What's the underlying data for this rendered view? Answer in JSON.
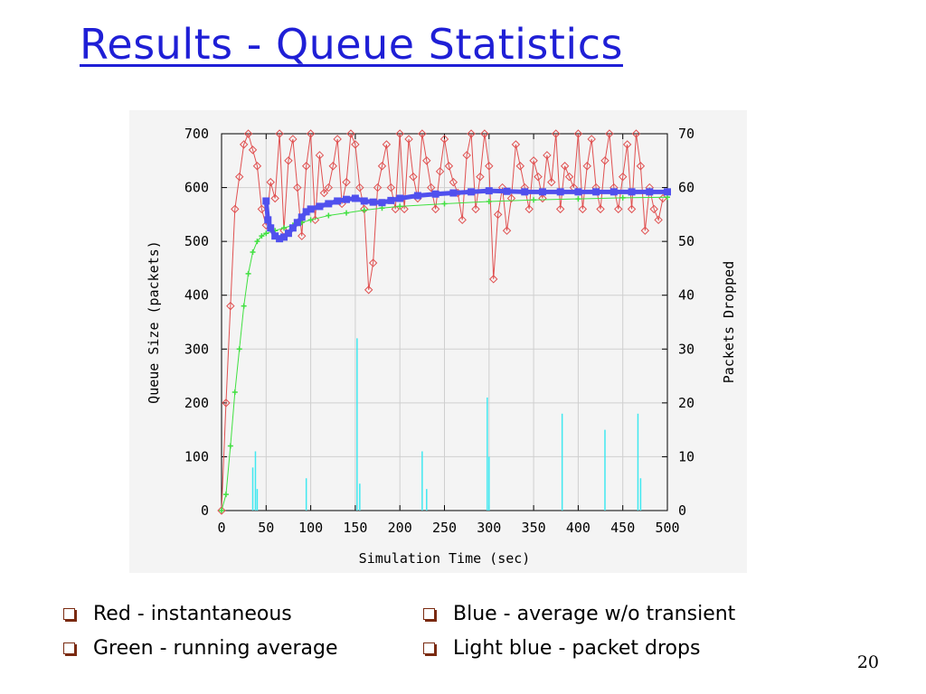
{
  "slide": {
    "title": "Results - Queue Statistics",
    "page_number": "20",
    "bullets_left": [
      "Red - instantaneous",
      "Green - running average"
    ],
    "bullets_right": [
      "Blue - average w/o transient",
      "Light blue - packet drops"
    ],
    "bullet_icon": "hollow-square-bullet-icon"
  },
  "chart_data": {
    "type": "line",
    "xlabel": "Simulation Time (sec)",
    "ylabel": "Queue Size (packets)",
    "y2label": "Packets Dropped",
    "xlim": [
      0,
      500
    ],
    "ylim": [
      0,
      700
    ],
    "y2lim": [
      0,
      70
    ],
    "xticks": [
      "0",
      "50",
      "100",
      "150",
      "200",
      "250",
      "300",
      "350",
      "400",
      "450",
      "500"
    ],
    "yticks": [
      "0",
      "100",
      "200",
      "300",
      "400",
      "500",
      "600",
      "700"
    ],
    "y2ticks": [
      "0",
      "10",
      "20",
      "30",
      "40",
      "50",
      "60",
      "70"
    ],
    "grid": true,
    "colors": {
      "instantaneous": "#e05050",
      "running_average": "#40e040",
      "average_no_transient": "#5050ee",
      "packet_drops": "#40e8f0"
    },
    "series": [
      {
        "key": "instantaneous",
        "axis": "left",
        "marker": "diamond",
        "x": [
          0,
          5,
          10,
          15,
          20,
          25,
          30,
          35,
          40,
          45,
          50,
          55,
          60,
          65,
          70,
          75,
          80,
          85,
          90,
          95,
          100,
          105,
          110,
          115,
          120,
          125,
          130,
          135,
          140,
          145,
          150,
          155,
          160,
          165,
          170,
          175,
          180,
          185,
          190,
          195,
          200,
          205,
          210,
          215,
          220,
          225,
          230,
          235,
          240,
          245,
          250,
          255,
          260,
          265,
          270,
          275,
          280,
          285,
          290,
          295,
          300,
          305,
          310,
          315,
          320,
          325,
          330,
          335,
          340,
          345,
          350,
          355,
          360,
          365,
          370,
          375,
          380,
          385,
          390,
          395,
          400,
          405,
          410,
          415,
          420,
          425,
          430,
          435,
          440,
          445,
          450,
          455,
          460,
          465,
          470,
          475,
          480,
          485,
          490,
          495
        ],
        "y": [
          0,
          200,
          380,
          560,
          620,
          680,
          700,
          670,
          640,
          560,
          530,
          610,
          580,
          700,
          520,
          650,
          690,
          600,
          510,
          640,
          700,
          540,
          660,
          590,
          600,
          640,
          690,
          570,
          610,
          700,
          680,
          600,
          560,
          410,
          460,
          600,
          640,
          680,
          600,
          560,
          700,
          560,
          690,
          620,
          580,
          700,
          650,
          600,
          560,
          630,
          690,
          640,
          610,
          590,
          540,
          660,
          700,
          560,
          620,
          700,
          640,
          430,
          550,
          600,
          520,
          580,
          680,
          640,
          600,
          560,
          650,
          620,
          580,
          660,
          610,
          700,
          560,
          640,
          620,
          600,
          700,
          560,
          640,
          690,
          600,
          560,
          650,
          700,
          600,
          560,
          620,
          680,
          560,
          700,
          640,
          520,
          600,
          560,
          540,
          580
        ]
      },
      {
        "key": "running_average",
        "axis": "left",
        "marker": "plus",
        "x": [
          0,
          5,
          10,
          15,
          20,
          25,
          30,
          35,
          40,
          45,
          50,
          60,
          70,
          80,
          90,
          100,
          120,
          140,
          160,
          180,
          200,
          250,
          300,
          350,
          400,
          450,
          500
        ],
        "y": [
          0,
          30,
          120,
          220,
          300,
          380,
          440,
          480,
          500,
          510,
          515,
          520,
          525,
          530,
          535,
          540,
          548,
          553,
          558,
          562,
          565,
          570,
          574,
          577,
          579,
          581,
          582
        ]
      },
      {
        "key": "average_no_transient",
        "axis": "left",
        "marker": "square",
        "x": [
          50,
          52,
          55,
          60,
          65,
          70,
          75,
          80,
          85,
          90,
          95,
          100,
          110,
          120,
          130,
          140,
          150,
          160,
          170,
          180,
          190,
          200,
          220,
          240,
          260,
          280,
          300,
          320,
          340,
          360,
          380,
          400,
          420,
          440,
          460,
          480,
          500
        ],
        "y": [
          575,
          540,
          525,
          510,
          505,
          508,
          515,
          525,
          535,
          545,
          555,
          560,
          565,
          570,
          575,
          578,
          580,
          575,
          573,
          572,
          576,
          580,
          585,
          588,
          590,
          592,
          594,
          593,
          592,
          592,
          592,
          592,
          592,
          592,
          592,
          592,
          592
        ]
      },
      {
        "key": "packet_drops",
        "axis": "right",
        "type": "impulse",
        "x": [
          35,
          38,
          40,
          95,
          152,
          155,
          225,
          230,
          298,
          300,
          382,
          430,
          467,
          470
        ],
        "y": [
          8,
          11,
          4,
          6,
          32,
          5,
          11,
          4,
          21,
          10,
          18,
          15,
          18,
          6
        ]
      }
    ]
  }
}
